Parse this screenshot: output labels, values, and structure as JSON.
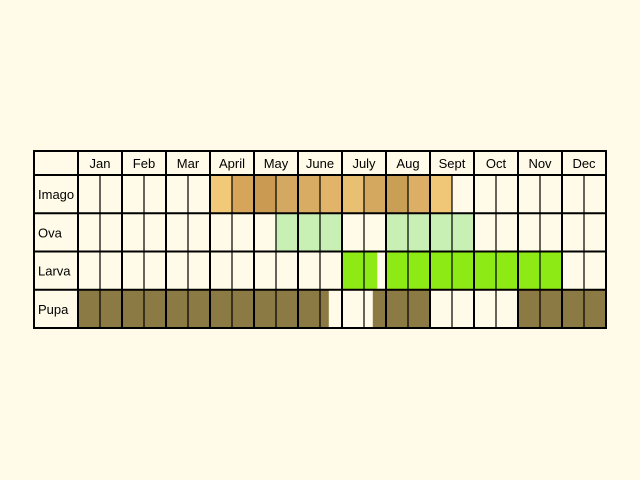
{
  "chart_data": {
    "type": "table",
    "months": [
      "Jan",
      "Feb",
      "Mar",
      "April",
      "May",
      "June",
      "July",
      "Aug",
      "Sept",
      "Oct",
      "Nov",
      "Dec"
    ],
    "rows": [
      {
        "label": "Imago",
        "segments": [
          {
            "start": 3.0,
            "end": 3.5,
            "color": "#f2c978"
          },
          {
            "start": 3.5,
            "end": 4.0,
            "color": "#d6a55a"
          },
          {
            "start": 4.0,
            "end": 4.5,
            "color": "#cb9a52"
          },
          {
            "start": 4.5,
            "end": 5.0,
            "color": "#d4a860"
          },
          {
            "start": 5.0,
            "end": 5.5,
            "color": "#d8ac62"
          },
          {
            "start": 5.5,
            "end": 6.0,
            "color": "#e2b46a"
          },
          {
            "start": 6.0,
            "end": 6.5,
            "color": "#e9bf72"
          },
          {
            "start": 6.5,
            "end": 7.0,
            "color": "#d4a85e"
          },
          {
            "start": 7.0,
            "end": 7.5,
            "color": "#c99e55"
          },
          {
            "start": 7.5,
            "end": 8.0,
            "color": "#dcae66"
          },
          {
            "start": 8.0,
            "end": 8.5,
            "color": "#f0c677"
          }
        ]
      },
      {
        "label": "Ova",
        "segments": [
          {
            "start": 4.5,
            "end": 6.0,
            "color": "#c8f0b4"
          },
          {
            "start": 7.0,
            "end": 9.0,
            "color": "#c8f0b4"
          }
        ]
      },
      {
        "label": "Larva",
        "segments": [
          {
            "start": 6.0,
            "end": 6.8,
            "color": "#8eea14"
          },
          {
            "start": 7.0,
            "end": 11.0,
            "color": "#8eea14"
          }
        ]
      },
      {
        "label": "Pupa",
        "segments": [
          {
            "start": 0.0,
            "end": 5.7,
            "color": "#8c7a45"
          },
          {
            "start": 6.7,
            "end": 8.0,
            "color": "#8c7a45"
          },
          {
            "start": 10.0,
            "end": 12.0,
            "color": "#8c7a45"
          }
        ]
      }
    ]
  }
}
